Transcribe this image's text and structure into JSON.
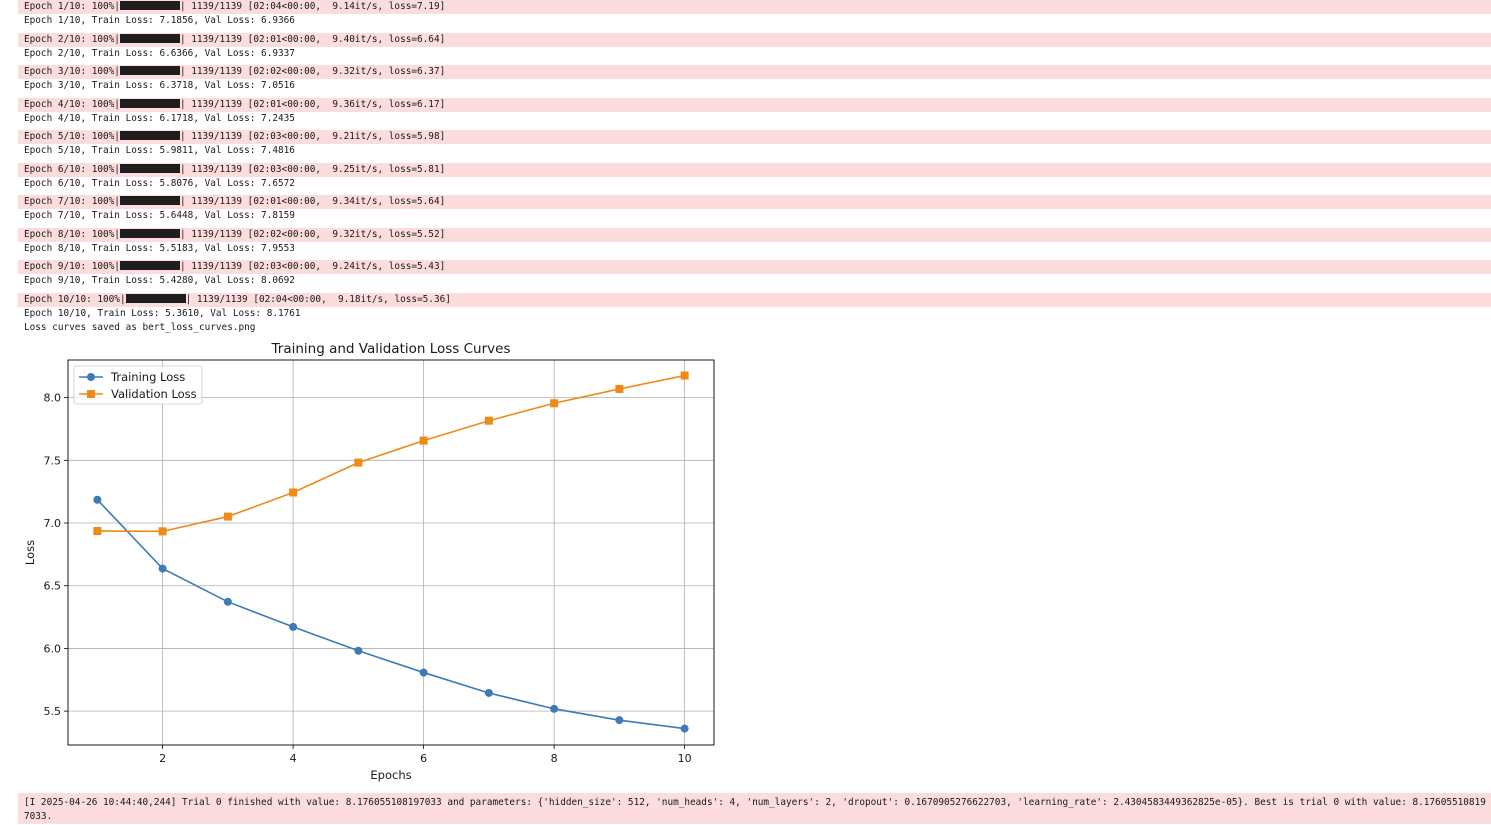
{
  "epochs": [
    {
      "progress_prefix": "Epoch 1/10: 100%|",
      "progress_suffix": "| 1139/1139 [02:04<00:00,  9.14it/s, loss=7.19]",
      "summary": "Epoch 1/10, Train Loss: 7.1856, Val Loss: 6.9366"
    },
    {
      "progress_prefix": "Epoch 2/10: 100%|",
      "progress_suffix": "| 1139/1139 [02:01<00:00,  9.40it/s, loss=6.64]",
      "summary": "Epoch 2/10, Train Loss: 6.6366, Val Loss: 6.9337"
    },
    {
      "progress_prefix": "Epoch 3/10: 100%|",
      "progress_suffix": "| 1139/1139 [02:02<00:00,  9.32it/s, loss=6.37]",
      "summary": "Epoch 3/10, Train Loss: 6.3718, Val Loss: 7.0516"
    },
    {
      "progress_prefix": "Epoch 4/10: 100%|",
      "progress_suffix": "| 1139/1139 [02:01<00:00,  9.36it/s, loss=6.17]",
      "summary": "Epoch 4/10, Train Loss: 6.1718, Val Loss: 7.2435"
    },
    {
      "progress_prefix": "Epoch 5/10: 100%|",
      "progress_suffix": "| 1139/1139 [02:03<00:00,  9.21it/s, loss=5.98]",
      "summary": "Epoch 5/10, Train Loss: 5.9811, Val Loss: 7.4816"
    },
    {
      "progress_prefix": "Epoch 6/10: 100%|",
      "progress_suffix": "| 1139/1139 [02:03<00:00,  9.25it/s, loss=5.81]",
      "summary": "Epoch 6/10, Train Loss: 5.8076, Val Loss: 7.6572"
    },
    {
      "progress_prefix": "Epoch 7/10: 100%|",
      "progress_suffix": "| 1139/1139 [02:01<00:00,  9.34it/s, loss=5.64]",
      "summary": "Epoch 7/10, Train Loss: 5.6448, Val Loss: 7.8159"
    },
    {
      "progress_prefix": "Epoch 8/10: 100%|",
      "progress_suffix": "| 1139/1139 [02:02<00:00,  9.32it/s, loss=5.52]",
      "summary": "Epoch 8/10, Train Loss: 5.5183, Val Loss: 7.9553"
    },
    {
      "progress_prefix": "Epoch 9/10: 100%|",
      "progress_suffix": "| 1139/1139 [02:03<00:00,  9.24it/s, loss=5.43]",
      "summary": "Epoch 9/10, Train Loss: 5.4280, Val Loss: 8.0692"
    },
    {
      "progress_prefix": "Epoch 10/10: 100%|",
      "progress_suffix": "| 1139/1139 [02:04<00:00,  9.18it/s, loss=5.36]",
      "summary": "Epoch 10/10, Train Loss: 5.3610, Val Loss: 8.1761"
    }
  ],
  "progress_fraction": 1.0,
  "saved_message": "Loss curves saved as bert_loss_curves.png",
  "trial_message": "[I 2025-04-26 10:44:40,244] Trial 0 finished with value: 8.176055108197033 and parameters: {'hidden_size': 512, 'num_heads': 4, 'num_layers': 2, 'dropout': 0.1670905276622703, 'learning_rate': 2.4304583449362825e-05}. Best is trial 0 with value: 8.176055108197033.",
  "colors": {
    "stderr_bg": "#fcdcdc",
    "training": "#3d7ab8",
    "validation": "#ef8a17"
  },
  "chart_data": {
    "type": "line",
    "title": "Training and Validation Loss Curves",
    "xlabel": "Epochs",
    "ylabel": "Loss",
    "x": [
      1,
      2,
      3,
      4,
      5,
      6,
      7,
      8,
      9,
      10
    ],
    "xticks": [
      2,
      4,
      6,
      8,
      10
    ],
    "yticks": [
      5.5,
      6.0,
      6.5,
      7.0,
      7.5,
      8.0
    ],
    "xlim": [
      0.55,
      10.45
    ],
    "ylim": [
      5.23,
      8.3
    ],
    "grid": true,
    "legend_position": "upper-left",
    "series": [
      {
        "name": "Training Loss",
        "marker": "circle",
        "color": "#3d7ab8",
        "values": [
          7.1856,
          6.6366,
          6.3718,
          6.1718,
          5.9811,
          5.8076,
          5.6448,
          5.5183,
          5.428,
          5.361
        ]
      },
      {
        "name": "Validation Loss",
        "marker": "square",
        "color": "#ef8a17",
        "values": [
          6.9366,
          6.9337,
          7.0516,
          7.2435,
          7.4816,
          7.6572,
          7.8159,
          7.9553,
          8.0692,
          8.1761
        ]
      }
    ]
  }
}
